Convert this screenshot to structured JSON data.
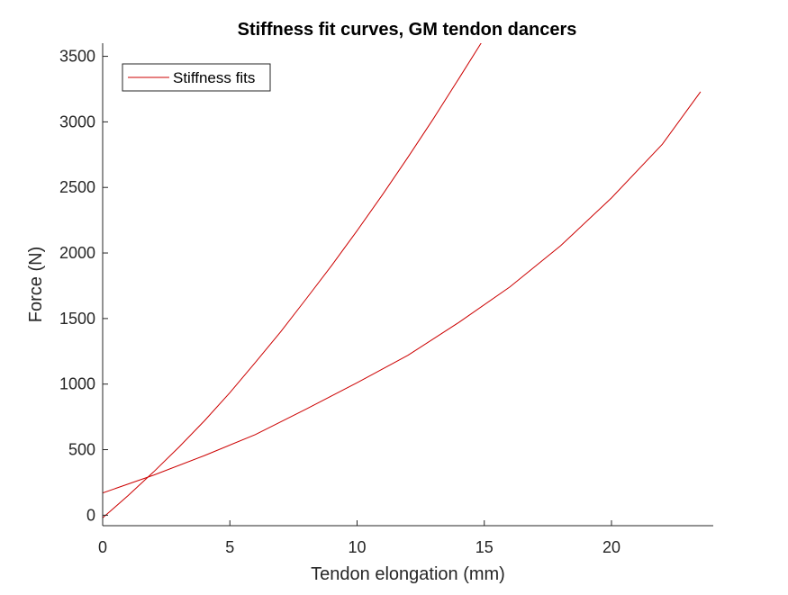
{
  "chart_data": {
    "type": "line",
    "title": "Stiffness fit curves, GM tendon dancers",
    "xlabel": "Tendon elongation (mm)",
    "ylabel": "Force (N)",
    "xlim": [
      0,
      24
    ],
    "ylim": [
      -80,
      3600
    ],
    "xticks": [
      0,
      5,
      10,
      15,
      20
    ],
    "yticks": [
      0,
      500,
      1000,
      1500,
      2000,
      2500,
      3000,
      3500
    ],
    "grid": false,
    "legend": {
      "entries": [
        "Stiffness fits"
      ],
      "location": "top-left"
    },
    "series": [
      {
        "name": "Stiffness fits",
        "color": "#cc0000",
        "x": [
          0,
          1,
          2,
          3,
          4,
          5,
          6,
          7,
          8,
          9,
          10,
          11,
          12,
          13,
          14,
          15
        ],
        "y": [
          -20,
          150,
          330,
          520,
          720,
          935,
          1165,
          1400,
          1650,
          1905,
          2170,
          2445,
          2730,
          3025,
          3330,
          3640
        ]
      },
      {
        "name": "",
        "color": "#cc0000",
        "x": [
          0,
          2,
          4,
          6,
          8,
          10,
          12,
          14,
          16,
          18,
          20,
          22,
          23.5
        ],
        "y": [
          170,
          305,
          455,
          615,
          810,
          1010,
          1220,
          1470,
          1740,
          2055,
          2420,
          2830,
          3230
        ]
      }
    ]
  }
}
